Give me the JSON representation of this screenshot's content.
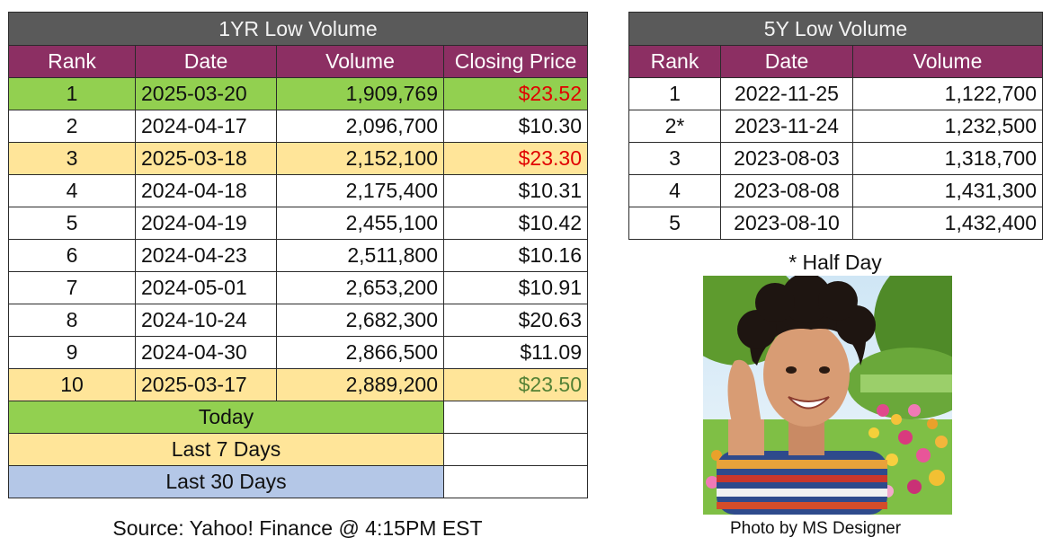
{
  "table1": {
    "title": "1YR Low Volume",
    "headers": [
      "Rank",
      "Date",
      "Volume",
      "Closing Price"
    ],
    "rows": [
      {
        "rank": "1",
        "date": "2025-03-20",
        "volume": "1,909,769",
        "price": "$23.52",
        "row_color": "#92d050",
        "price_color": "#e00000"
      },
      {
        "rank": "2",
        "date": "2024-04-17",
        "volume": "2,096,700",
        "price": "$10.30",
        "row_color": "#ffffff",
        "price_color": "#111111"
      },
      {
        "rank": "3",
        "date": "2025-03-18",
        "volume": "2,152,100",
        "price": "$23.30",
        "row_color": "#ffe599",
        "price_color": "#e00000"
      },
      {
        "rank": "4",
        "date": "2024-04-18",
        "volume": "2,175,400",
        "price": "$10.31",
        "row_color": "#ffffff",
        "price_color": "#111111"
      },
      {
        "rank": "5",
        "date": "2024-04-19",
        "volume": "2,455,100",
        "price": "$10.42",
        "row_color": "#ffffff",
        "price_color": "#111111"
      },
      {
        "rank": "6",
        "date": "2024-04-23",
        "volume": "2,511,800",
        "price": "$10.16",
        "row_color": "#ffffff",
        "price_color": "#111111"
      },
      {
        "rank": "7",
        "date": "2024-05-01",
        "volume": "2,653,200",
        "price": "$10.91",
        "row_color": "#ffffff",
        "price_color": "#111111"
      },
      {
        "rank": "8",
        "date": "2024-10-24",
        "volume": "2,682,300",
        "price": "$20.63",
        "row_color": "#ffffff",
        "price_color": "#111111"
      },
      {
        "rank": "9",
        "date": "2024-04-30",
        "volume": "2,866,500",
        "price": "$11.09",
        "row_color": "#ffffff",
        "price_color": "#111111"
      },
      {
        "rank": "10",
        "date": "2025-03-17",
        "volume": "2,889,200",
        "price": "$23.50",
        "row_color": "#ffe599",
        "price_color": "#538135"
      }
    ],
    "legend": [
      {
        "label": "Today",
        "color": "#92d050"
      },
      {
        "label": "Last 7 Days",
        "color": "#ffe599"
      },
      {
        "label": "Last 30 Days",
        "color": "#b4c7e7"
      }
    ]
  },
  "table2": {
    "title": "5Y Low Volume",
    "headers": [
      "Rank",
      "Date",
      "Volume"
    ],
    "rows": [
      {
        "rank": "1",
        "date": "2022-11-25",
        "volume": "1,122,700"
      },
      {
        "rank": "2*",
        "date": "2023-11-24",
        "volume": "1,232,500"
      },
      {
        "rank": "3",
        "date": "2023-08-03",
        "volume": "1,318,700"
      },
      {
        "rank": "4",
        "date": "2023-08-08",
        "volume": "1,431,300"
      },
      {
        "rank": "5",
        "date": "2023-08-10",
        "volume": "1,432,400"
      }
    ]
  },
  "notes": {
    "half_day": "* Half Day",
    "source": "Source: Yahoo! Finance @ 4:15PM EST",
    "photo_credit": "Photo by MS Designer"
  },
  "colors": {
    "header_bg": "#8c2f63",
    "title_bg": "#5a5a5a"
  }
}
